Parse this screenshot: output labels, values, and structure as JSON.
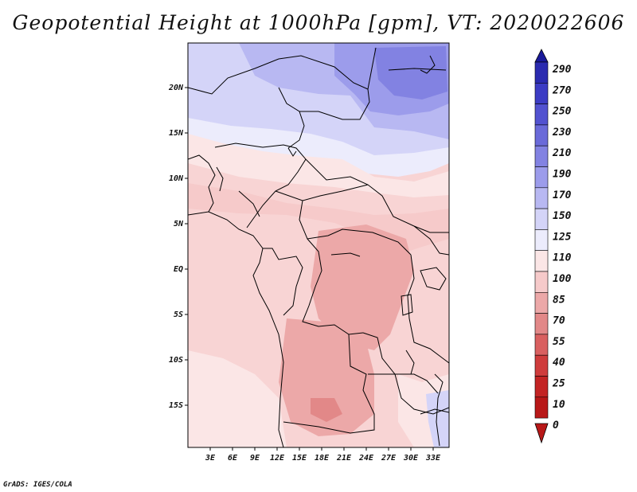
{
  "title": "Geopotential Height at 1000hPa [gpm], VT: 2020022606",
  "credit": "GrADS: IGES/COLA",
  "map": {
    "lat_labels": [
      "20N",
      "15N",
      "10N",
      "5N",
      "EQ",
      "5S",
      "10S",
      "15S"
    ],
    "lon_labels": [
      "3E",
      "6E",
      "9E",
      "12E",
      "15E",
      "18E",
      "21E",
      "24E",
      "27E",
      "30E",
      "33E"
    ]
  },
  "colorbar": {
    "levels": [
      "290",
      "270",
      "250",
      "230",
      "210",
      "190",
      "170",
      "150",
      "125",
      "110",
      "100",
      "85",
      "70",
      "55",
      "40",
      "25",
      "10",
      "0"
    ],
    "colors": [
      "#1a1a9a",
      "#2b2bb0",
      "#3c3cc4",
      "#5252d0",
      "#6a6ad9",
      "#8282e2",
      "#9c9ceb",
      "#b8b8f2",
      "#d4d4f8",
      "#ececfc",
      "#fbe6e6",
      "#f6caca",
      "#eca8a8",
      "#e28888",
      "#d96060",
      "#cf3c3c",
      "#c32424",
      "#b81818"
    ]
  },
  "chart_data": {
    "type": "heatmap",
    "title": "Geopotential Height at 1000hPa [gpm], VT: 2020022606",
    "variable": "geopotential height",
    "units": "gpm",
    "valid_time": "2020022606",
    "x_ticks": [
      "3E",
      "6E",
      "9E",
      "12E",
      "15E",
      "18E",
      "21E",
      "24E",
      "27E",
      "30E",
      "33E"
    ],
    "y_ticks": [
      "20N",
      "15N",
      "10N",
      "5N",
      "EQ",
      "5S",
      "10S",
      "15S"
    ],
    "colorbar_levels": [
      0,
      10,
      25,
      40,
      55,
      70,
      85,
      100,
      110,
      125,
      150,
      170,
      190,
      210,
      230,
      250,
      270,
      290
    ]
  }
}
